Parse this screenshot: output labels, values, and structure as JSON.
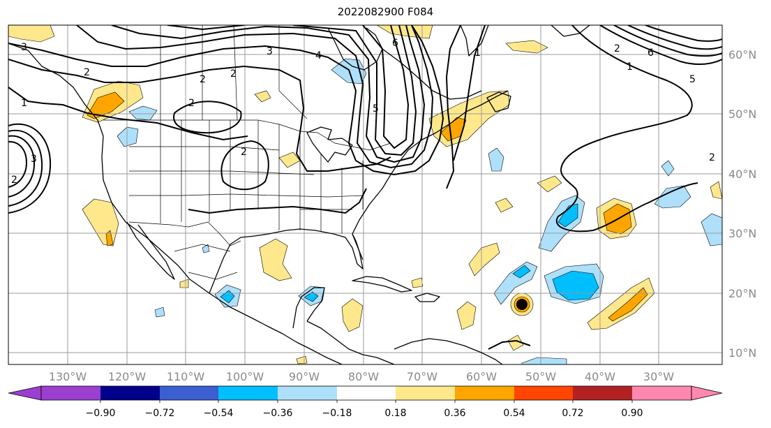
{
  "title": "2022082900 F084",
  "longitude_labels": [
    "130°W",
    "120°W",
    "110°W",
    "100°W",
    "90°W",
    "80°W",
    "70°W",
    "60°W",
    "50°W",
    "40°W",
    "30°W"
  ],
  "latitude_labels": [
    "60°N",
    "50°N",
    "40°N",
    "30°N",
    "20°N",
    "10°N"
  ],
  "contour_labels": [
    "3",
    "3",
    "2",
    "1",
    "2",
    "2",
    "3",
    "4",
    "6",
    "5",
    "1",
    "1",
    "2",
    "6",
    "5",
    "2",
    "2",
    "2",
    "2"
  ],
  "colorbar": {
    "tick_labels": [
      "−0.90",
      "−0.72",
      "−0.54",
      "−0.36",
      "−0.18",
      "0.18",
      "0.36",
      "0.54",
      "0.72",
      "0.90"
    ],
    "colors": [
      "#9b3fd0",
      "#00008b",
      "#3b5fd0",
      "#00bfff",
      "#aee0fb",
      "#ffffff",
      "#ffe88c",
      "#ffa500",
      "#ff4500",
      "#b22222",
      "#ff88b0"
    ]
  },
  "colors": {
    "light_yellow": "#ffe88c",
    "orange": "#ffa500",
    "light_blue": "#aee0fb",
    "blue": "#00bfff",
    "storm_marker": "#000000"
  }
}
